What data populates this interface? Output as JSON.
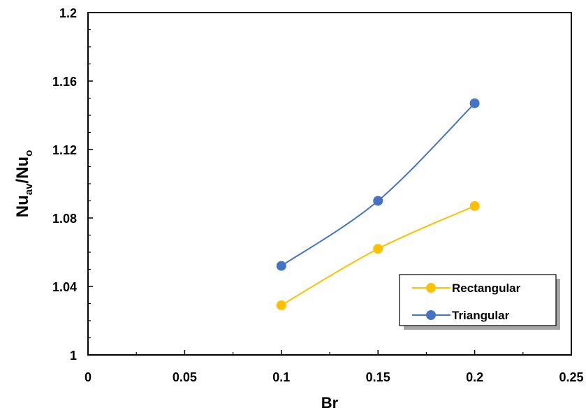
{
  "chart_data": {
    "type": "line",
    "xlabel": "Br",
    "ylabel": {
      "base1": "Nu",
      "sub1": "av",
      "sep": "/",
      "base2": "Nu",
      "sub2": "o"
    },
    "xlim": [
      0,
      0.25
    ],
    "ylim": [
      1,
      1.2
    ],
    "xticks": [
      "0",
      "0.05",
      "0.1",
      "0.15",
      "0.2",
      "0.25"
    ],
    "yticks": [
      "1",
      "1.04",
      "1.08",
      "1.12",
      "1.16",
      "1.2"
    ],
    "grid": false,
    "legend_position": "bottom-right",
    "series": [
      {
        "name": "Rectangular",
        "color": "#FFC000",
        "x": [
          0.1,
          0.15,
          0.2
        ],
        "y": [
          1.029,
          1.062,
          1.087
        ]
      },
      {
        "name": "Triangular",
        "color": "#4472C4",
        "x": [
          0.1,
          0.15,
          0.2
        ],
        "y": [
          1.052,
          1.09,
          1.147
        ]
      }
    ]
  }
}
